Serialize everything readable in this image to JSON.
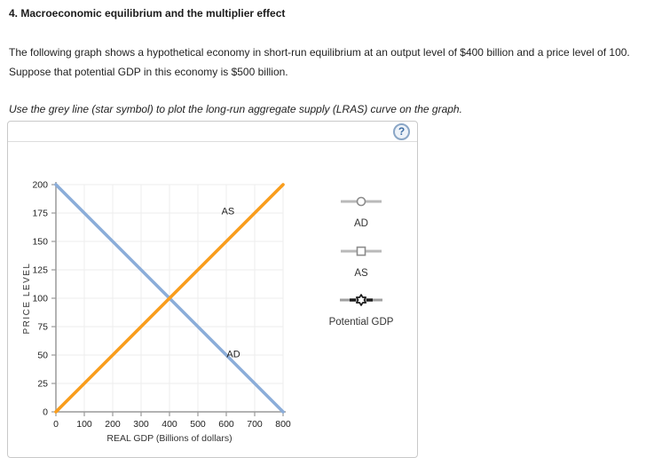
{
  "header": {
    "title": "4. Macroeconomic equilibrium and the multiplier effect",
    "description": "The following graph shows a hypothetical economy in short-run equilibrium at an output level of $400 billion and a price level of 100. Suppose that potential GDP in this economy is $500 billion.",
    "instruction": "Use the grey line (star symbol) to plot the long-run aggregate supply (LRAS) curve on the graph."
  },
  "panel": {
    "help_icon": "?",
    "legend": {
      "items": [
        {
          "label": "AD",
          "marker": "circle-marker"
        },
        {
          "label": "AS",
          "marker": "square-marker"
        },
        {
          "label": "Potential GDP",
          "marker": "star-marker"
        }
      ]
    }
  },
  "chart_data": {
    "type": "line",
    "title": "",
    "xlabel": "REAL GDP (Billions of dollars)",
    "ylabel": "PRICE LEVEL",
    "xlim": [
      0,
      800
    ],
    "ylim": [
      0,
      200
    ],
    "xticks": [
      0,
      100,
      200,
      300,
      400,
      500,
      600,
      700,
      800
    ],
    "yticks": [
      0,
      25,
      50,
      75,
      100,
      125,
      150,
      175,
      200
    ],
    "grid": true,
    "legend_position": "right-panel",
    "series": [
      {
        "name": "AD",
        "color": "#8badd9",
        "points": [
          [
            0,
            200
          ],
          [
            800,
            0
          ]
        ]
      },
      {
        "name": "AS",
        "color": "#f99d1c",
        "points": [
          [
            0,
            0
          ],
          [
            800,
            200
          ]
        ]
      }
    ],
    "annotations": [
      {
        "text": "AS",
        "x": 606,
        "y": 177
      },
      {
        "text": "AD",
        "x": 625,
        "y": 51
      }
    ],
    "equilibrium": {
      "output_billions": 400,
      "price_level": 100
    },
    "potential_gdp_billions": 500
  },
  "colors": {
    "ad_curve": "#8badd9",
    "as_curve": "#f99d1c",
    "axis": "#9a9a9a",
    "grid": "#ededed",
    "legend_line": "#b9b9b9",
    "potential_line": "#a0a0a0"
  }
}
